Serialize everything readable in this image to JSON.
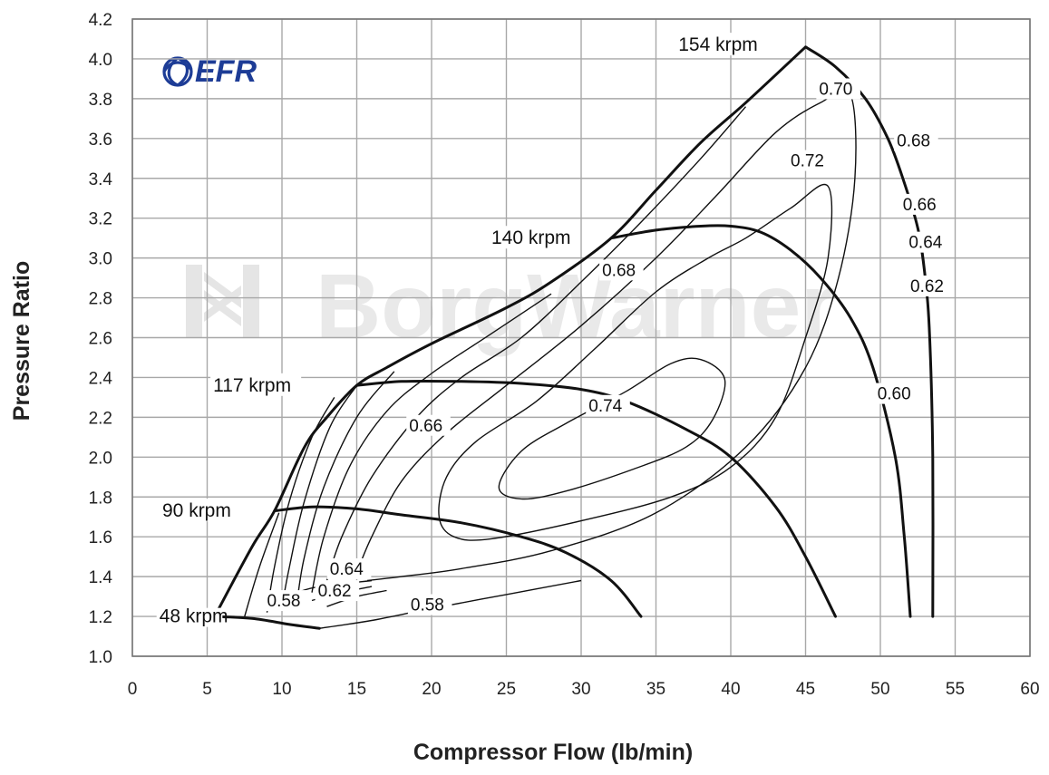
{
  "chart_data": {
    "type": "line",
    "title": "",
    "xlabel": "Compressor Flow (lb/min)",
    "ylabel": "Pressure Ratio",
    "xlim": [
      0,
      60
    ],
    "ylim": [
      1.0,
      4.2
    ],
    "x_ticks": [
      "0",
      "5",
      "10",
      "15",
      "20",
      "25",
      "30",
      "35",
      "40",
      "45",
      "50",
      "55",
      "60"
    ],
    "y_ticks": [
      "1.0",
      "1.2",
      "1.4",
      "1.6",
      "1.8",
      "2.0",
      "2.2",
      "2.4",
      "2.6",
      "2.8",
      "3.0",
      "3.2",
      "3.4",
      "3.6",
      "3.8",
      "4.0",
      "4.2"
    ],
    "grid": true,
    "logo_text": "EFR",
    "watermark": "BorgWarner",
    "surge_line": [
      [
        5.5,
        1.2
      ],
      [
        8,
        1.55
      ],
      [
        9.5,
        1.73
      ],
      [
        11.5,
        2.05
      ],
      [
        13,
        2.2
      ],
      [
        15,
        2.36
      ],
      [
        17,
        2.45
      ],
      [
        20,
        2.57
      ],
      [
        25,
        2.75
      ],
      [
        28,
        2.88
      ],
      [
        32,
        3.1
      ],
      [
        35,
        3.34
      ],
      [
        38,
        3.58
      ],
      [
        41,
        3.78
      ],
      [
        45,
        4.06
      ]
    ],
    "speed_lines": [
      {
        "label": "48 krpm",
        "points": [
          [
            5.5,
            1.2
          ],
          [
            8,
            1.19
          ],
          [
            10.5,
            1.16
          ],
          [
            12.5,
            1.14
          ]
        ]
      },
      {
        "label": "90 krpm",
        "points": [
          [
            9.5,
            1.73
          ],
          [
            12,
            1.75
          ],
          [
            15,
            1.74
          ],
          [
            18,
            1.71
          ],
          [
            22,
            1.67
          ],
          [
            26,
            1.6
          ],
          [
            29,
            1.52
          ],
          [
            32,
            1.38
          ],
          [
            34,
            1.2
          ]
        ]
      },
      {
        "label": "117 krpm",
        "points": [
          [
            15,
            2.36
          ],
          [
            18,
            2.38
          ],
          [
            22,
            2.38
          ],
          [
            26,
            2.37
          ],
          [
            30,
            2.34
          ],
          [
            33,
            2.28
          ],
          [
            37,
            2.14
          ],
          [
            40,
            2.0
          ],
          [
            43,
            1.75
          ],
          [
            45,
            1.5
          ],
          [
            47,
            1.2
          ]
        ]
      },
      {
        "label": "140 krpm",
        "points": [
          [
            32,
            3.1
          ],
          [
            35,
            3.14
          ],
          [
            38,
            3.16
          ],
          [
            40,
            3.16
          ],
          [
            42,
            3.13
          ],
          [
            44,
            3.04
          ],
          [
            46,
            2.9
          ],
          [
            48,
            2.7
          ],
          [
            49.5,
            2.45
          ],
          [
            51,
            2.0
          ],
          [
            51.6,
            1.6
          ],
          [
            52,
            1.2
          ]
        ]
      },
      {
        "label": "154 krpm",
        "points": [
          [
            45,
            4.06
          ],
          [
            47,
            3.96
          ],
          [
            49,
            3.8
          ],
          [
            50.5,
            3.6
          ],
          [
            51.5,
            3.4
          ],
          [
            52.5,
            3.15
          ],
          [
            53,
            2.9
          ],
          [
            53.3,
            2.6
          ],
          [
            53.5,
            2.0
          ],
          [
            53.5,
            1.2
          ]
        ]
      }
    ],
    "efficiency_islands": [
      {
        "label": "0.74",
        "closed": true,
        "points": [
          [
            24.5,
            1.85
          ],
          [
            26,
            2.03
          ],
          [
            29,
            2.17
          ],
          [
            33,
            2.33
          ],
          [
            36,
            2.47
          ],
          [
            38,
            2.49
          ],
          [
            39.6,
            2.39
          ],
          [
            38.8,
            2.19
          ],
          [
            37,
            2.05
          ],
          [
            33.5,
            1.94
          ],
          [
            29,
            1.83
          ],
          [
            26,
            1.79
          ]
        ]
      },
      {
        "label": "0.72",
        "closed": true,
        "points": [
          [
            20.5,
            1.7
          ],
          [
            21,
            1.9
          ],
          [
            23,
            2.08
          ],
          [
            27,
            2.28
          ],
          [
            31,
            2.55
          ],
          [
            35,
            2.83
          ],
          [
            38.5,
            3.0
          ],
          [
            41,
            3.1
          ],
          [
            44,
            3.25
          ],
          [
            46.5,
            3.36
          ],
          [
            46.5,
            3.0
          ],
          [
            45,
            2.6
          ],
          [
            43,
            2.2
          ],
          [
            40,
            1.95
          ],
          [
            36,
            1.8
          ],
          [
            30,
            1.68
          ],
          [
            24,
            1.59
          ],
          [
            21.5,
            1.6
          ]
        ]
      },
      {
        "label": "0.70",
        "closed": false,
        "points": [
          [
            15,
            1.42
          ],
          [
            16,
            1.6
          ],
          [
            18,
            1.88
          ],
          [
            21,
            2.12
          ],
          [
            25,
            2.36
          ],
          [
            30,
            2.66
          ],
          [
            35,
            3.0
          ],
          [
            39,
            3.31
          ],
          [
            43,
            3.63
          ],
          [
            46,
            3.78
          ],
          [
            48,
            3.82
          ],
          [
            48.3,
            3.4
          ],
          [
            47.2,
            2.9
          ],
          [
            45,
            2.45
          ],
          [
            41,
            2.05
          ],
          [
            35,
            1.72
          ],
          [
            28,
            1.53
          ],
          [
            22,
            1.44
          ],
          [
            18,
            1.4
          ],
          [
            15.7,
            1.38
          ]
        ]
      },
      {
        "label": "0.68",
        "closed": false,
        "points": [
          [
            13,
            1.38
          ],
          [
            14,
            1.6
          ],
          [
            16,
            1.9
          ],
          [
            19,
            2.2
          ],
          [
            22,
            2.4
          ],
          [
            26,
            2.6
          ],
          [
            30,
            2.88
          ],
          [
            34,
            3.18
          ],
          [
            38,
            3.5
          ],
          [
            41,
            3.76
          ]
        ]
      },
      {
        "label": "0.66",
        "closed": false,
        "points": [
          [
            12,
            1.32
          ],
          [
            12.8,
            1.6
          ],
          [
            14.5,
            1.95
          ],
          [
            17,
            2.23
          ],
          [
            20,
            2.42
          ],
          [
            24,
            2.62
          ],
          [
            28,
            2.82
          ]
        ]
      },
      {
        "label": "0.64",
        "closed": false,
        "points": [
          [
            11,
            1.27
          ],
          [
            11.5,
            1.5
          ],
          [
            12.8,
            1.85
          ],
          [
            15,
            2.2
          ],
          [
            17.5,
            2.43
          ]
        ]
      },
      {
        "label": "0.62",
        "closed": false,
        "points": [
          [
            10,
            1.25
          ],
          [
            10.5,
            1.45
          ],
          [
            11.5,
            1.78
          ],
          [
            13.2,
            2.15
          ],
          [
            15,
            2.36
          ]
        ]
      },
      {
        "label": "0.60",
        "closed": false,
        "points": [
          [
            9,
            1.22
          ],
          [
            9.5,
            1.45
          ],
          [
            10.5,
            1.78
          ],
          [
            12,
            2.1
          ],
          [
            13.5,
            2.3
          ]
        ]
      },
      {
        "label": "0.58",
        "closed": false,
        "points": [
          [
            7.5,
            1.2
          ],
          [
            8.5,
            1.45
          ],
          [
            9.8,
            1.72
          ]
        ]
      },
      {
        "label": "0.66",
        "closed": false,
        "points": [
          [
            11,
            1.32
          ],
          [
            12.5,
            1.35
          ],
          [
            16,
            1.38
          ]
        ]
      },
      {
        "label": "0.64",
        "closed": false,
        "points": [
          [
            12,
            1.28
          ],
          [
            14,
            1.32
          ],
          [
            16,
            1.35
          ]
        ]
      },
      {
        "label": "0.62",
        "closed": false,
        "points": [
          [
            13,
            1.25
          ],
          [
            15,
            1.3
          ],
          [
            17,
            1.33
          ]
        ]
      },
      {
        "label": "0.58",
        "closed": false,
        "points": [
          [
            12.5,
            1.14
          ],
          [
            16,
            1.18
          ],
          [
            20,
            1.24
          ],
          [
            25,
            1.31
          ],
          [
            30,
            1.38
          ]
        ]
      }
    ],
    "labels": {
      "speed": [
        {
          "text": "48 krpm",
          "x": 1.8,
          "y": 1.17
        },
        {
          "text": "90 krpm",
          "x": 2.0,
          "y": 1.7
        },
        {
          "text": "117 krpm",
          "x": 5.4,
          "y": 2.33
        },
        {
          "text": "140 krpm",
          "x": 24.0,
          "y": 3.07
        },
        {
          "text": "154 krpm",
          "x": 36.5,
          "y": 4.04
        }
      ],
      "efficiency": [
        {
          "text": "0.70",
          "x": 45.9,
          "y": 3.82
        },
        {
          "text": "0.68",
          "x": 51.1,
          "y": 3.56
        },
        {
          "text": "0.72",
          "x": 44.0,
          "y": 3.46
        },
        {
          "text": "0.66",
          "x": 51.5,
          "y": 3.24
        },
        {
          "text": "0.64",
          "x": 51.9,
          "y": 3.05
        },
        {
          "text": "0.62",
          "x": 52.0,
          "y": 2.83
        },
        {
          "text": "0.60",
          "x": 49.8,
          "y": 2.29
        },
        {
          "text": "0.68",
          "x": 31.4,
          "y": 2.91
        },
        {
          "text": "0.74",
          "x": 30.5,
          "y": 2.23
        },
        {
          "text": "0.66",
          "x": 18.5,
          "y": 2.13
        },
        {
          "text": "0.64",
          "x": 13.2,
          "y": 1.41
        },
        {
          "text": "0.62",
          "x": 12.4,
          "y": 1.3
        },
        {
          "text": "0.58",
          "x": 9.0,
          "y": 1.25
        },
        {
          "text": "0.58",
          "x": 18.6,
          "y": 1.23
        }
      ]
    }
  }
}
